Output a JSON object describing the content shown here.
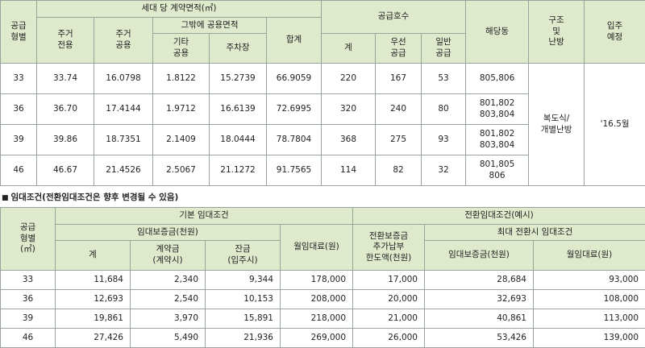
{
  "table1": {
    "headers": {
      "supply_type": "공급\n형별",
      "area_group": "세대 당 계약면적(㎡)",
      "res_exclusive": "주거\n전용",
      "res_common": "주거\n공용",
      "other_common_group": "그밖에 공용면적",
      "other_common": "기타\n공용",
      "parking": "주차장",
      "total": "합계",
      "supply_units": "공급호수",
      "units_total": "계",
      "priority": "우선\n공급",
      "general": "일반\n공급",
      "buildings": "해당동",
      "structure": "구조\n및\n난방",
      "movein": "입주\n예정"
    },
    "structure_value": "복도식/\n개별난방",
    "movein_value": "'16.5월",
    "rows": [
      {
        "type": "33",
        "res_ex": "33.74",
        "res_co": "16.0798",
        "other": "1.8122",
        "parking": "15.2739",
        "total": "66.9059",
        "cnt": "220",
        "pri": "167",
        "gen": "53",
        "bldg": "805,806"
      },
      {
        "type": "36",
        "res_ex": "36.70",
        "res_co": "17.4144",
        "other": "1.9712",
        "parking": "16.6139",
        "total": "72.6995",
        "cnt": "320",
        "pri": "240",
        "gen": "80",
        "bldg": "801,802\n803,804"
      },
      {
        "type": "39",
        "res_ex": "39.86",
        "res_co": "18.7351",
        "other": "2.1409",
        "parking": "18.0444",
        "total": "78.7804",
        "cnt": "368",
        "pri": "275",
        "gen": "93",
        "bldg": "801,802\n803,804"
      },
      {
        "type": "46",
        "res_ex": "46.67",
        "res_co": "21.4526",
        "other": "2.5067",
        "parking": "21.1272",
        "total": "91.7565",
        "cnt": "114",
        "pri": "82",
        "gen": "32",
        "bldg": "801,805\n806"
      }
    ]
  },
  "section2": {
    "marker": "■",
    "title": "임대조건(전환임대조건은 향후 변경될 수 있음)"
  },
  "table2": {
    "headers": {
      "supply_type": "공급\n형별\n(㎡)",
      "basic_group": "기본 임대조건",
      "conversion_group": "전환임대조건(예시)",
      "deposit_group": "임대보증금(천원)",
      "total": "계",
      "down_payment": "계약금\n(계약시)",
      "balance": "잔금\n(입주시)",
      "monthly_rent": "월임대료(원)",
      "conversion_limit": "전환보증금\n추가납부\n한도액(천원)",
      "max_conversion_group": "최대 전환시 임대조건",
      "max_deposit": "임대보증금(천원)",
      "max_monthly": "월임대료(원)"
    },
    "rows": [
      {
        "type": "33",
        "total": "11,684",
        "down": "2,340",
        "balance": "9,344",
        "rent": "178,000",
        "limit": "17,000",
        "max_dep": "28,684",
        "max_rent": "93,000"
      },
      {
        "type": "36",
        "total": "12,693",
        "down": "2,540",
        "balance": "10,153",
        "rent": "208,000",
        "limit": "20,000",
        "max_dep": "32,693",
        "max_rent": "108,000"
      },
      {
        "type": "39",
        "total": "19,861",
        "down": "3,970",
        "balance": "15,891",
        "rent": "218,000",
        "limit": "21,000",
        "max_dep": "40,861",
        "max_rent": "113,000"
      },
      {
        "type": "46",
        "total": "27,426",
        "down": "5,490",
        "balance": "21,936",
        "rent": "269,000",
        "limit": "26,000",
        "max_dep": "53,426",
        "max_rent": "139,000"
      }
    ]
  }
}
